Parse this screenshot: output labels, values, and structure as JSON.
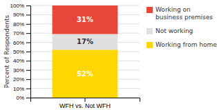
{
  "chart_data": {
    "type": "bar",
    "stacked": true,
    "data_labels": true,
    "categories": [
      "WFH vs. Not WFH"
    ],
    "series": [
      {
        "name": "Working from home",
        "color": "#FFD700",
        "values": [
          52
        ],
        "value_labels": [
          "52%"
        ]
      },
      {
        "name": "Not working",
        "color": "#E0E0E0",
        "values": [
          17
        ],
        "value_labels": [
          "17%"
        ]
      },
      {
        "name": "Working on\nbusiness premises",
        "color": "#E8463A",
        "values": [
          31
        ],
        "value_labels": [
          "31%"
        ]
      }
    ],
    "ylabel": "Percent of Respondents",
    "ylim": [
      0,
      100
    ],
    "yticks": [
      {
        "value": 0,
        "label": "0%"
      },
      {
        "value": 10,
        "label": "10%"
      },
      {
        "value": 20,
        "label": "20%"
      },
      {
        "value": 30,
        "label": "30%"
      },
      {
        "value": 40,
        "label": "40%"
      },
      {
        "value": 50,
        "label": "50%"
      },
      {
        "value": 60,
        "label": "60%"
      },
      {
        "value": 70,
        "label": "70%"
      },
      {
        "value": 80,
        "label": "80%"
      },
      {
        "value": 90,
        "label": "90%"
      },
      {
        "value": 100,
        "label": "100%"
      }
    ],
    "grid": true,
    "legend": "right"
  }
}
